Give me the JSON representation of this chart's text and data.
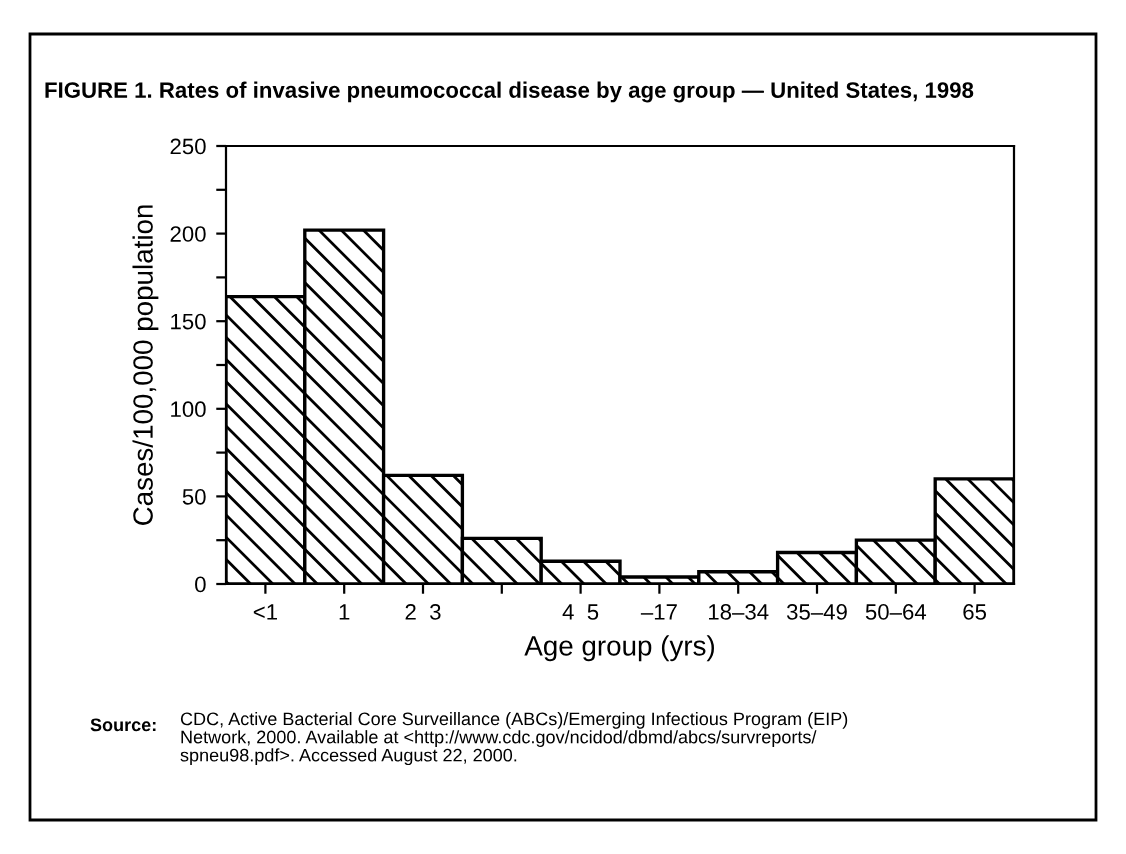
{
  "chart_data": {
    "type": "bar",
    "title": "FIGURE 1. Rates of invasive pneumococcal disease by age group — United States, 1998",
    "xlabel": "Age group (yrs)",
    "ylabel": "Cases/100,000 population",
    "categories": [
      "<1",
      "1",
      "2  3",
      null,
      "4  5",
      "–17",
      "18–34",
      "35–49",
      "50–64",
      "65"
    ],
    "values": [
      164,
      202,
      62,
      26,
      13,
      4,
      7,
      18,
      25,
      60
    ],
    "color": "#000000",
    "ylim": [
      0,
      250
    ],
    "yticks": [
      0,
      {
        "value": 25,
        "label": null
      },
      50,
      {
        "value": 75,
        "label": null
      },
      100,
      {
        "value": 125,
        "label": null
      },
      150,
      {
        "value": 175,
        "label": null
      },
      200,
      {
        "value": 225,
        "label": null
      },
      250
    ],
    "grid": false,
    "legend": false,
    "annotations": [
      "Source:",
      "CDC, Active Bacterial Core Surveillance (ABCs)/Emerging Infectious Program (EIP)\nNetwork, 2000. Available at <http://www.cdc.gov/ncidod/dbmd/abcs/survreports/\nspneu98.pdf>. Accessed August 22, 2000."
    ]
  }
}
